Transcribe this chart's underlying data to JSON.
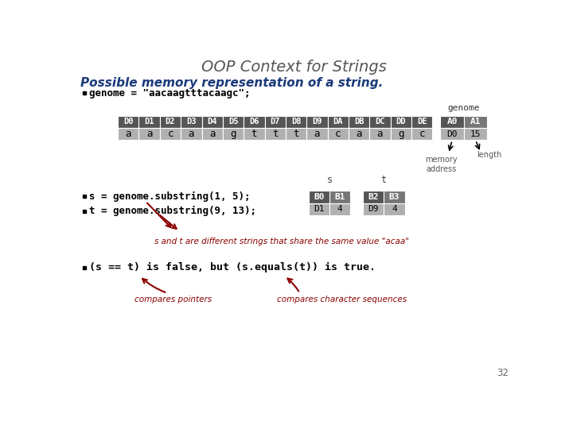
{
  "title": "OOP Context for Strings",
  "subtitle": "Possible memory representation of a string.",
  "bullet1": "genome = \"aacaagtttacaagc\";",
  "bullet2_s": "s = genome.substring(1, 5);",
  "bullet2_t": "t = genome.substring(9, 13);",
  "bullet3": "(s == t) is false, but (s.equals(t)) is true.",
  "genome_headers": [
    "D0",
    "D1",
    "D2",
    "D3",
    "D4",
    "D5",
    "D6",
    "D7",
    "D8",
    "D9",
    "DA",
    "DB",
    "DC",
    "DD",
    "DE"
  ],
  "genome_chars": [
    "a",
    "a",
    "c",
    "a",
    "a",
    "g",
    "t",
    "t",
    "t",
    "a",
    "c",
    "a",
    "a",
    "g",
    "c"
  ],
  "genome_obj_headers": [
    "A0",
    "A1"
  ],
  "genome_obj_values": [
    "D0",
    "15"
  ],
  "s_headers": [
    "B0",
    "B1"
  ],
  "s_values": [
    "D1",
    "4"
  ],
  "t_headers": [
    "B2",
    "B3"
  ],
  "t_values": [
    "D9",
    "4"
  ],
  "header_bg": "#555555",
  "header_fg": "#ffffff",
  "cell_bg": "#b0b0b0",
  "cell_fg": "#000000",
  "dark_cell_bg": "#777777",
  "title_color": "#555555",
  "subtitle_color": "#1a3a7a",
  "code_color": "#000000",
  "annotation_color": "#8b0000",
  "label_color": "#555555",
  "page_num": "32",
  "bg_color": "#ffffff",
  "ann_note": "s and t are different strings that share the same value \"acaa\"",
  "ann_pointers": "compares pointers",
  "ann_chars": "compares character sequences",
  "mem_addr": "memory\naddress",
  "length_label": "length",
  "genome_label": "genome",
  "s_label": "s",
  "t_label": "t"
}
